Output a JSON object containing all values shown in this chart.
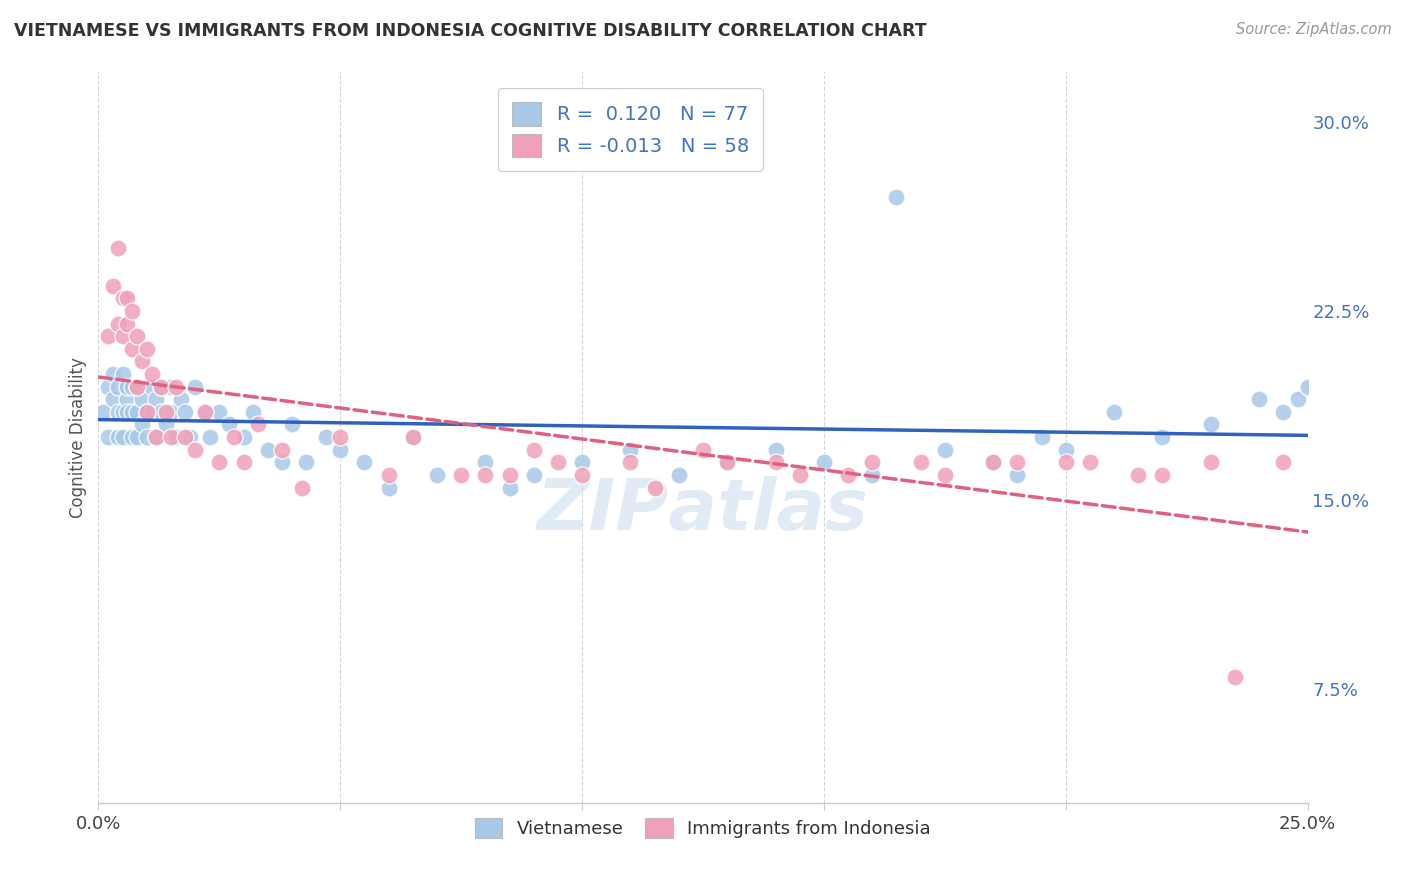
{
  "title": "VIETNAMESE VS IMMIGRANTS FROM INDONESIA COGNITIVE DISABILITY CORRELATION CHART",
  "source": "Source: ZipAtlas.com",
  "ylabel": "Cognitive Disability",
  "x_min": 0.0,
  "x_max": 0.25,
  "y_min": 0.03,
  "y_max": 0.32,
  "y_ticks": [
    0.075,
    0.15,
    0.225,
    0.3
  ],
  "y_tick_labels": [
    "7.5%",
    "15.0%",
    "22.5%",
    "30.0%"
  ],
  "x_tick_positions": [
    0.0,
    0.05,
    0.1,
    0.15,
    0.2,
    0.25
  ],
  "x_tick_labels": [
    "0.0%",
    "",
    "",
    "",
    "",
    "25.0%"
  ],
  "legend_labels": [
    "Vietnamese",
    "Immigrants from Indonesia"
  ],
  "r_vietnamese": 0.12,
  "n_vietnamese": 77,
  "r_indonesia": -0.013,
  "n_indonesia": 58,
  "blue_color": "#A8C8E8",
  "pink_color": "#F0A0B8",
  "blue_line_color": "#3060C0",
  "pink_line_color": "#E06080",
  "background_color": "#FFFFFF",
  "grid_color": "#CCCCCC",
  "viet_x": [
    0.001,
    0.002,
    0.002,
    0.003,
    0.003,
    0.004,
    0.004,
    0.004,
    0.005,
    0.005,
    0.005,
    0.006,
    0.006,
    0.006,
    0.007,
    0.007,
    0.007,
    0.008,
    0.008,
    0.008,
    0.009,
    0.009,
    0.01,
    0.01,
    0.011,
    0.011,
    0.012,
    0.012,
    0.013,
    0.013,
    0.014,
    0.015,
    0.015,
    0.016,
    0.017,
    0.018,
    0.019,
    0.02,
    0.022,
    0.023,
    0.025,
    0.027,
    0.03,
    0.032,
    0.035,
    0.038,
    0.04,
    0.043,
    0.047,
    0.05,
    0.055,
    0.06,
    0.065,
    0.07,
    0.08,
    0.085,
    0.09,
    0.1,
    0.11,
    0.12,
    0.13,
    0.14,
    0.15,
    0.16,
    0.175,
    0.185,
    0.19,
    0.195,
    0.2,
    0.21,
    0.22,
    0.23,
    0.24,
    0.245,
    0.248,
    0.25,
    0.165
  ],
  "viet_y": [
    0.185,
    0.175,
    0.195,
    0.19,
    0.2,
    0.185,
    0.175,
    0.195,
    0.185,
    0.2,
    0.175,
    0.19,
    0.185,
    0.195,
    0.185,
    0.175,
    0.195,
    0.185,
    0.175,
    0.195,
    0.19,
    0.18,
    0.185,
    0.175,
    0.185,
    0.195,
    0.175,
    0.19,
    0.185,
    0.195,
    0.18,
    0.185,
    0.195,
    0.175,
    0.19,
    0.185,
    0.175,
    0.195,
    0.185,
    0.175,
    0.185,
    0.18,
    0.175,
    0.185,
    0.17,
    0.165,
    0.18,
    0.165,
    0.175,
    0.17,
    0.165,
    0.155,
    0.175,
    0.16,
    0.165,
    0.155,
    0.16,
    0.165,
    0.17,
    0.16,
    0.165,
    0.17,
    0.165,
    0.16,
    0.17,
    0.165,
    0.16,
    0.175,
    0.17,
    0.185,
    0.175,
    0.18,
    0.19,
    0.185,
    0.19,
    0.195,
    0.27
  ],
  "indo_x": [
    0.002,
    0.003,
    0.004,
    0.004,
    0.005,
    0.005,
    0.006,
    0.006,
    0.007,
    0.007,
    0.008,
    0.008,
    0.009,
    0.01,
    0.01,
    0.011,
    0.012,
    0.013,
    0.014,
    0.015,
    0.016,
    0.018,
    0.02,
    0.022,
    0.025,
    0.028,
    0.03,
    0.033,
    0.038,
    0.042,
    0.05,
    0.06,
    0.065,
    0.075,
    0.085,
    0.095,
    0.11,
    0.125,
    0.14,
    0.155,
    0.17,
    0.185,
    0.2,
    0.215,
    0.23,
    0.245,
    0.08,
    0.09,
    0.1,
    0.115,
    0.13,
    0.145,
    0.16,
    0.175,
    0.19,
    0.205,
    0.22,
    0.235
  ],
  "indo_y": [
    0.215,
    0.235,
    0.22,
    0.25,
    0.23,
    0.215,
    0.22,
    0.23,
    0.225,
    0.21,
    0.215,
    0.195,
    0.205,
    0.185,
    0.21,
    0.2,
    0.175,
    0.195,
    0.185,
    0.175,
    0.195,
    0.175,
    0.17,
    0.185,
    0.165,
    0.175,
    0.165,
    0.18,
    0.17,
    0.155,
    0.175,
    0.16,
    0.175,
    0.16,
    0.16,
    0.165,
    0.165,
    0.17,
    0.165,
    0.16,
    0.165,
    0.165,
    0.165,
    0.16,
    0.165,
    0.165,
    0.16,
    0.17,
    0.16,
    0.155,
    0.165,
    0.16,
    0.165,
    0.16,
    0.165,
    0.165,
    0.16,
    0.08
  ]
}
